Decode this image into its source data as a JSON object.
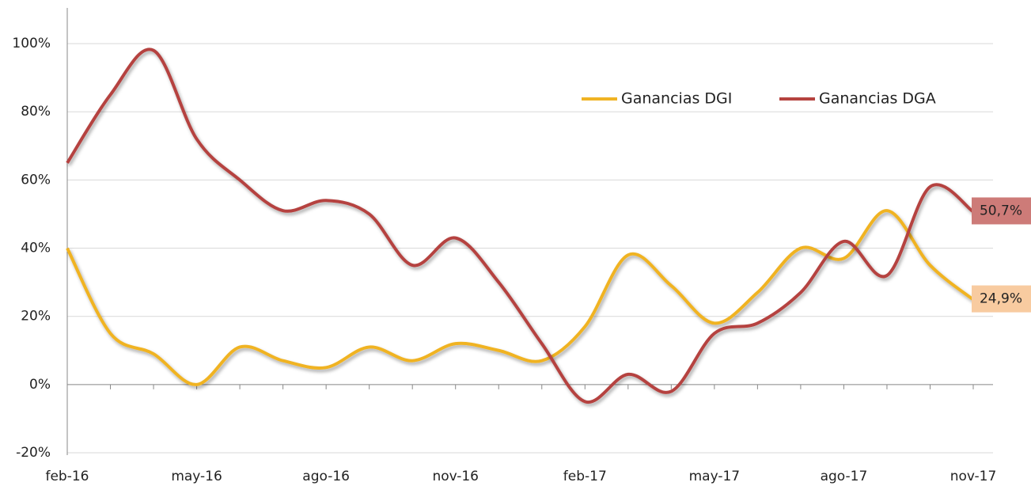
{
  "chart_data": {
    "type": "line",
    "categories": [
      "feb-16",
      null,
      null,
      "may-16",
      null,
      null,
      "ago-16",
      null,
      null,
      "nov-16",
      null,
      null,
      "feb-17",
      null,
      null,
      "may-17",
      null,
      null,
      "ago-17",
      null,
      null,
      "nov-17"
    ],
    "series": [
      {
        "name": "Ganancias DGI",
        "color": "#f0b323",
        "values": [
          40,
          15,
          9,
          0,
          11,
          7,
          5,
          11,
          7,
          12,
          10,
          7,
          17,
          38,
          29,
          18,
          27,
          40,
          37,
          51,
          35,
          24.9
        ],
        "value_labels": [
          null,
          null,
          null,
          null,
          null,
          null,
          null,
          null,
          null,
          null,
          null,
          null,
          null,
          null,
          null,
          null,
          null,
          null,
          null,
          null,
          null,
          "24,9%"
        ],
        "label_color": "#f8cba0"
      },
      {
        "name": "Ganancias DGA",
        "color": "#b5433f",
        "values": [
          65,
          85,
          98,
          72,
          60,
          51,
          54,
          50,
          35,
          43,
          30,
          12,
          -5,
          3,
          -2,
          15,
          18,
          27,
          42,
          32,
          58,
          50.7
        ],
        "value_labels": [
          null,
          null,
          null,
          null,
          null,
          null,
          null,
          null,
          null,
          null,
          null,
          null,
          null,
          null,
          null,
          null,
          null,
          null,
          null,
          null,
          null,
          "50,7%"
        ],
        "label_color": "#cd7b78"
      }
    ],
    "ylim": [
      -20,
      110
    ],
    "yticks": [
      {
        "value": -20,
        "label": "-20%"
      },
      {
        "value": 0,
        "label": "0%"
      },
      {
        "value": 20,
        "label": "20%"
      },
      {
        "value": 40,
        "label": "40%"
      },
      {
        "value": 60,
        "label": "60%"
      },
      {
        "value": 80,
        "label": "80%"
      },
      {
        "value": 100,
        "label": "100%"
      }
    ],
    "grid": true,
    "legend": "top-right"
  }
}
